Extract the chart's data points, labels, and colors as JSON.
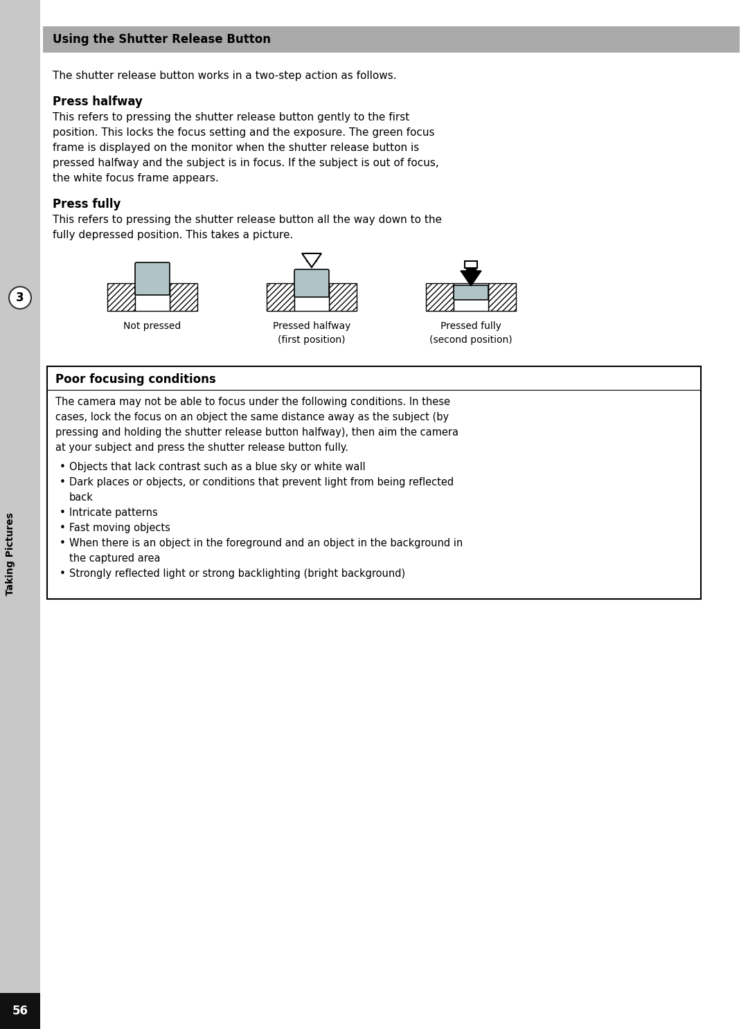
{
  "page_bg": "#ffffff",
  "sidebar_bg": "#c8c8c8",
  "page_number": "56",
  "chapter_number": "3",
  "chapter_title": "Taking Pictures",
  "header_bg": "#aaaaaa",
  "header_text": "Using the Shutter Release Button",
  "intro_text": "The shutter release button works in a two-step action as follows.",
  "section1_title": "Press halfway",
  "section1_body_lines": [
    "This refers to pressing the shutter release button gently to the first",
    "position. This locks the focus setting and the exposure. The green focus",
    "frame is displayed on the monitor when the shutter release button is",
    "pressed halfway and the subject is in focus. If the subject is out of focus,",
    "the white focus frame appears."
  ],
  "section2_title": "Press fully",
  "section2_body_lines": [
    "This refers to pressing the shutter release button all the way down to the",
    "fully depressed position. This takes a picture."
  ],
  "diagram_labels": [
    "Not pressed",
    "Pressed halfway\n(first position)",
    "Pressed fully\n(second position)"
  ],
  "box_title": "Poor focusing conditions",
  "box_intro_lines": [
    "The camera may not be able to focus under the following conditions. In these",
    "cases, lock the focus on an object the same distance away as the subject (by",
    "pressing and holding the shutter release button halfway), then aim the camera",
    "at your subject and press the shutter release button fully."
  ],
  "bullet_points": [
    [
      "Objects that lack contrast such as a blue sky or white wall"
    ],
    [
      "Dark places or objects, or conditions that prevent light from being reflected",
      "back"
    ],
    [
      "Intricate patterns"
    ],
    [
      "Fast moving objects"
    ],
    [
      "When there is an object in the foreground and an object in the background in",
      "the captured area"
    ],
    [
      "Strongly reflected light or strong backlighting (bright background)"
    ]
  ],
  "button_fill": "#b0c4c8",
  "text_color": "#000000"
}
